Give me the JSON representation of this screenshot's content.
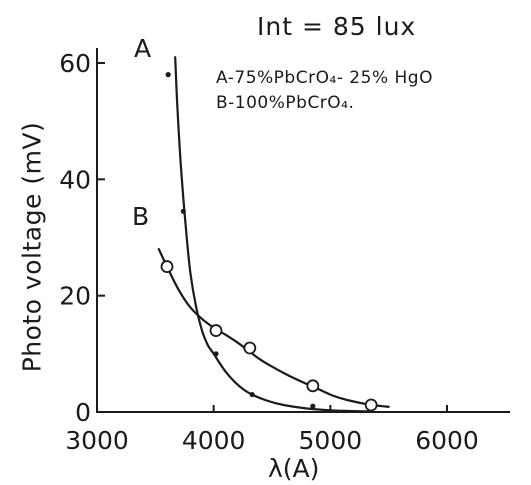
{
  "chart_data": {
    "type": "line",
    "xlabel": "λ(A)",
    "ylabel": "Photo voltage (mV)",
    "xlim": [
      3000,
      6000
    ],
    "ylim": [
      0,
      60
    ],
    "x_ticks": [
      3000,
      4000,
      5000,
      6000
    ],
    "y_ticks": [
      0,
      20,
      40,
      60
    ],
    "x_tick_labels": [
      "3000",
      "4000",
      "5000",
      "6000"
    ],
    "y_tick_labels": [
      "0",
      "20",
      "40",
      "60"
    ],
    "grid": false,
    "series": [
      {
        "name": "A",
        "marker": "dot",
        "points": [
          [
            3610,
            58
          ],
          [
            3740,
            34.5
          ],
          [
            4020,
            10
          ],
          [
            4330,
            3
          ],
          [
            4850,
            1
          ],
          [
            5350,
            0.3
          ]
        ],
        "curve": [
          [
            3670,
            61
          ],
          [
            3690,
            52
          ],
          [
            3720,
            42
          ],
          [
            3760,
            32
          ],
          [
            3800,
            24
          ],
          [
            3850,
            18
          ],
          [
            3900,
            14
          ],
          [
            3950,
            11.5
          ],
          [
            4000,
            10
          ],
          [
            4100,
            7
          ],
          [
            4200,
            4.8
          ],
          [
            4300,
            3.3
          ],
          [
            4450,
            2
          ],
          [
            4600,
            1.2
          ],
          [
            4800,
            0.6
          ],
          [
            5000,
            0.3
          ],
          [
            5200,
            0.15
          ],
          [
            5350,
            0.1
          ]
        ]
      },
      {
        "name": "B",
        "marker": "open-circle",
        "points": [
          [
            3600,
            25
          ],
          [
            4020,
            14
          ],
          [
            4310,
            11
          ],
          [
            4850,
            4.5
          ],
          [
            5350,
            1.2
          ]
        ],
        "curve": [
          [
            3530,
            28
          ],
          [
            3600,
            25
          ],
          [
            3700,
            21
          ],
          [
            3800,
            18
          ],
          [
            3900,
            16
          ],
          [
            4000,
            14.5
          ],
          [
            4100,
            13.3
          ],
          [
            4200,
            12
          ],
          [
            4300,
            10.5
          ],
          [
            4400,
            9
          ],
          [
            4500,
            7.8
          ],
          [
            4600,
            6.7
          ],
          [
            4700,
            5.7
          ],
          [
            4800,
            4.8
          ],
          [
            4900,
            3.9
          ],
          [
            5000,
            3
          ],
          [
            5100,
            2.3
          ],
          [
            5200,
            1.8
          ],
          [
            5300,
            1.4
          ],
          [
            5400,
            1.1
          ],
          [
            5500,
            0.9
          ]
        ]
      }
    ],
    "annotations": {
      "title": "Int = 85 lux",
      "label_a": "A",
      "label_b": "B",
      "a_desc": "A-75%PbCrO₄- 25% HgO",
      "b_desc": "B-100%PbCrO₄."
    }
  }
}
